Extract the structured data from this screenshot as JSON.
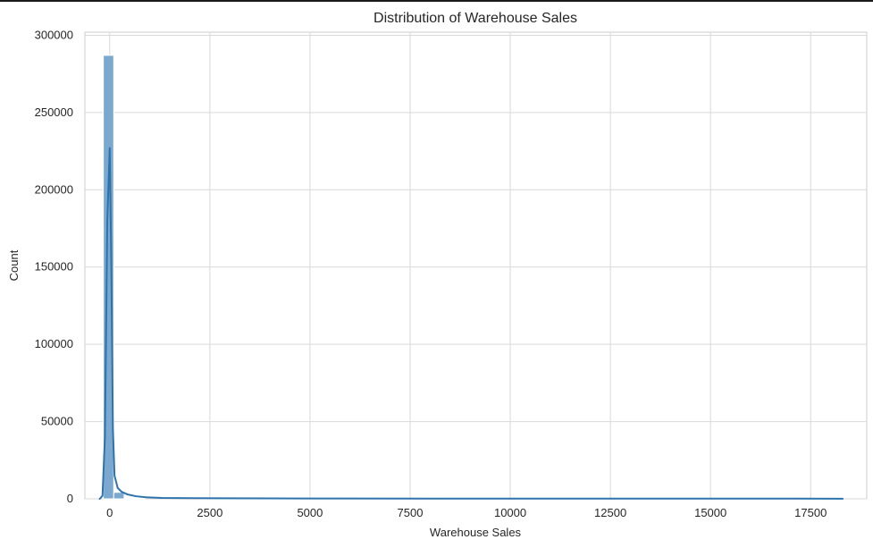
{
  "chart_data": {
    "type": "bar",
    "title": "Distribution of Warehouse Sales",
    "xlabel": "Warehouse Sales",
    "ylabel": "Count",
    "xlim": [
      -620,
      18900
    ],
    "ylim": [
      0,
      302000
    ],
    "x_ticks": [
      0,
      2500,
      5000,
      7500,
      10000,
      12500,
      15000,
      17500
    ],
    "y_ticks": [
      0,
      50000,
      100000,
      150000,
      200000,
      250000,
      300000
    ],
    "grid": true,
    "legend": "none",
    "bar_color": "#7ba8cf",
    "bar_edge_color": "#ffffff",
    "kde_color": "#2f73ad",
    "series": [
      {
        "type": "histogram",
        "bins": [
          {
            "x0": -160,
            "x1": 100,
            "count": 287000
          },
          {
            "x0": 100,
            "x1": 360,
            "count": 4200
          },
          {
            "x0": 360,
            "x1": 620,
            "count": 600
          },
          {
            "x0": 620,
            "x1": 880,
            "count": 200
          }
        ]
      },
      {
        "type": "kde",
        "x": [
          -250,
          -180,
          -120,
          -60,
          0,
          40,
          80,
          120,
          200,
          300,
          450,
          650,
          900,
          1300,
          2000,
          3000,
          5000,
          8000,
          12000,
          16000,
          18300
        ],
        "y": [
          0,
          2000,
          40000,
          180000,
          227000,
          150000,
          45000,
          15000,
          7000,
          4500,
          2800,
          1700,
          1000,
          600,
          450,
          350,
          250,
          180,
          140,
          120,
          100
        ]
      }
    ]
  }
}
